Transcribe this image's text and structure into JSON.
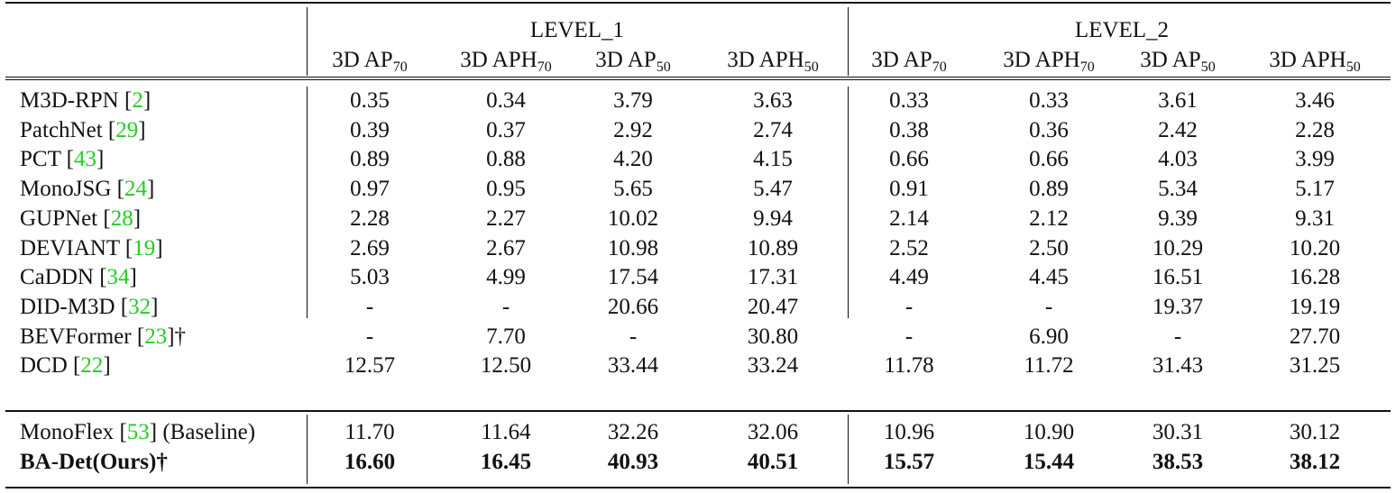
{
  "table": {
    "groups": [
      "LEVEL_1",
      "LEVEL_2"
    ],
    "columns": [
      {
        "base": "3D AP",
        "sub": "70"
      },
      {
        "base": "3D APH",
        "sub": "70"
      },
      {
        "base": "3D AP",
        "sub": "50"
      },
      {
        "base": "3D APH",
        "sub": "50"
      },
      {
        "base": "3D AP",
        "sub": "70"
      },
      {
        "base": "3D APH",
        "sub": "70"
      },
      {
        "base": "3D AP",
        "sub": "50"
      },
      {
        "base": "3D APH",
        "sub": "50"
      }
    ],
    "rows": [
      {
        "name": "M3D-RPN",
        "cite": "2",
        "suffix": "",
        "values": [
          "0.35",
          "0.34",
          "3.79",
          "3.63",
          "0.33",
          "0.33",
          "3.61",
          "3.46"
        ]
      },
      {
        "name": "PatchNet",
        "cite": "29",
        "suffix": "",
        "values": [
          "0.39",
          "0.37",
          "2.92",
          "2.74",
          "0.38",
          "0.36",
          "2.42",
          "2.28"
        ]
      },
      {
        "name": "PCT",
        "cite": "43",
        "suffix": "",
        "values": [
          "0.89",
          "0.88",
          "4.20",
          "4.15",
          "0.66",
          "0.66",
          "4.03",
          "3.99"
        ]
      },
      {
        "name": "MonoJSG",
        "cite": "24",
        "suffix": "",
        "values": [
          "0.97",
          "0.95",
          "5.65",
          "5.47",
          "0.91",
          "0.89",
          "5.34",
          "5.17"
        ]
      },
      {
        "name": "GUPNet",
        "cite": "28",
        "suffix": "",
        "values": [
          "2.28",
          "2.27",
          "10.02",
          "9.94",
          "2.14",
          "2.12",
          "9.39",
          "9.31"
        ]
      },
      {
        "name": "DEVIANT",
        "cite": "19",
        "suffix": "",
        "values": [
          "2.69",
          "2.67",
          "10.98",
          "10.89",
          "2.52",
          "2.50",
          "10.29",
          "10.20"
        ]
      },
      {
        "name": "CaDDN",
        "cite": "34",
        "suffix": "",
        "values": [
          "5.03",
          "4.99",
          "17.54",
          "17.31",
          "4.49",
          "4.45",
          "16.51",
          "16.28"
        ]
      },
      {
        "name": "DID-M3D",
        "cite": "32",
        "suffix": "",
        "values": [
          "-",
          "-",
          "20.66",
          "20.47",
          "-",
          "-",
          "19.37",
          "19.19"
        ]
      },
      {
        "name": "BEVFormer",
        "cite": "23",
        "suffix": "†",
        "values": [
          "-",
          "7.70",
          "-",
          "30.80",
          "-",
          "6.90",
          "-",
          "27.70"
        ]
      },
      {
        "name": "DCD",
        "cite": "22",
        "suffix": "",
        "values": [
          "12.57",
          "12.50",
          "33.44",
          "33.24",
          "11.78",
          "11.72",
          "31.43",
          "31.25"
        ]
      }
    ],
    "bottom_rows": [
      {
        "name": "MonoFlex",
        "cite": "53",
        "suffix": " (Baseline)",
        "bold": false,
        "values": [
          "11.70",
          "11.64",
          "32.26",
          "32.06",
          "10.96",
          "10.90",
          "30.31",
          "30.12"
        ]
      },
      {
        "name": "BA-Det(Ours)",
        "cite": "",
        "suffix": "†",
        "bold": true,
        "values": [
          "16.60",
          "16.45",
          "40.93",
          "40.51",
          "15.57",
          "15.44",
          "38.53",
          "38.12"
        ]
      }
    ]
  }
}
